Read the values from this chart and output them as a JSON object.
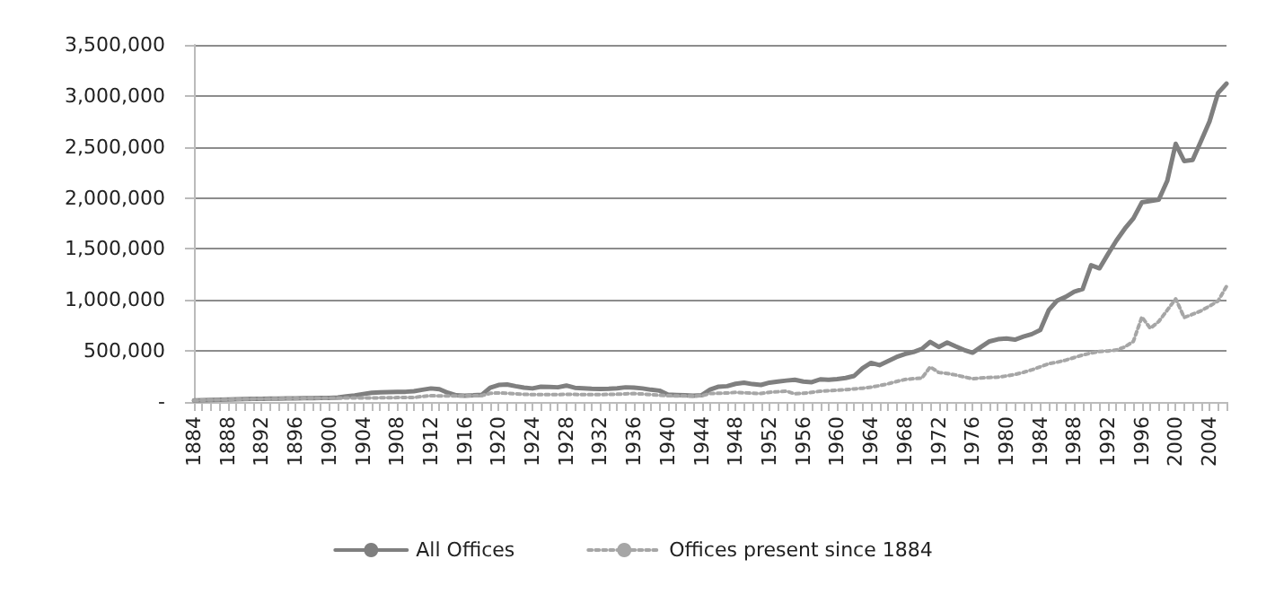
{
  "chart_data": {
    "type": "line",
    "categories": [
      "1884",
      null,
      null,
      null,
      "1888",
      null,
      null,
      null,
      "1892",
      null,
      null,
      null,
      "1896",
      null,
      null,
      null,
      "1900",
      null,
      null,
      null,
      "1904",
      null,
      null,
      null,
      "1908",
      null,
      null,
      null,
      "1912",
      null,
      null,
      null,
      "1916",
      null,
      null,
      null,
      "1920",
      null,
      null,
      null,
      "1924",
      null,
      null,
      null,
      "1928",
      null,
      null,
      null,
      "1932",
      null,
      null,
      null,
      "1936",
      null,
      null,
      null,
      "1940",
      null,
      null,
      null,
      "1944",
      null,
      null,
      null,
      "1948",
      null,
      null,
      null,
      "1952",
      null,
      null,
      null,
      "1956",
      null,
      null,
      null,
      "1960",
      null,
      null,
      null,
      "1964",
      null,
      null,
      null,
      "1968",
      null,
      null,
      null,
      "1972",
      null,
      null,
      null,
      "1976",
      null,
      null,
      null,
      "1980",
      null,
      null,
      null,
      "1984",
      null,
      null,
      null,
      "1988",
      null,
      null,
      null,
      "1992",
      null,
      null,
      null,
      "1996",
      null,
      null,
      null,
      "2000",
      null,
      null,
      null,
      "2004",
      null,
      null
    ],
    "series": [
      {
        "name": "All Offices",
        "color": "#7f7f7f",
        "line_style": "solid",
        "values": [
          15000,
          18000,
          20000,
          22000,
          25000,
          26000,
          28000,
          30000,
          30000,
          32000,
          33000,
          35000,
          35000,
          37000,
          38000,
          39000,
          40000,
          45000,
          55000,
          65000,
          78000,
          90000,
          95000,
          97000,
          98000,
          100000,
          105000,
          120000,
          133000,
          125000,
          90000,
          65000,
          62000,
          65000,
          70000,
          140000,
          167000,
          172000,
          155000,
          140000,
          133000,
          150000,
          148000,
          144000,
          161000,
          139000,
          135000,
          130000,
          128000,
          130000,
          135000,
          144000,
          140000,
          133000,
          120000,
          111000,
          72000,
          68000,
          65000,
          61000,
          67000,
          122000,
          150000,
          155000,
          178000,
          189000,
          175000,
          167000,
          190000,
          200000,
          210000,
          217000,
          200000,
          194000,
          222000,
          217000,
          225000,
          235000,
          255000,
          330000,
          383000,
          361000,
          400000,
          440000,
          470000,
          490000,
          520000,
          589000,
          539000,
          583000,
          545000,
          510000,
          483000,
          540000,
          594000,
          615000,
          622000,
          611000,
          640000,
          665000,
          706000,
          900000,
          994000,
          1030000,
          1080000,
          1106000,
          1340000,
          1310000,
          1450000,
          1583000,
          1700000,
          1800000,
          1956000,
          1970000,
          1983000,
          2167000,
          2530000,
          2361000,
          2372000,
          2560000,
          2750000,
          3028000,
          3120000
        ]
      },
      {
        "name": "Offices present since 1884",
        "color": "#a6a6a6",
        "line_style": "dotted",
        "values": [
          15000,
          18000,
          20000,
          22000,
          25000,
          26000,
          28000,
          30000,
          30000,
          32000,
          33000,
          35000,
          35000,
          36000,
          37000,
          38000,
          38000,
          38000,
          39000,
          39000,
          39000,
          40000,
          41000,
          42000,
          43000,
          44000,
          44000,
          55000,
          61000,
          60000,
          60000,
          60000,
          61000,
          62000,
          63000,
          85000,
          89000,
          85000,
          80000,
          75000,
          72000,
          72000,
          72000,
          73000,
          75000,
          74000,
          72000,
          72000,
          73000,
          74000,
          76000,
          80000,
          83000,
          78000,
          72000,
          66000,
          61000,
          60000,
          60000,
          60000,
          61000,
          83000,
          85000,
          88000,
          94000,
          90000,
          86000,
          83000,
          95000,
          100000,
          106000,
          80000,
          85000,
          95000,
          106000,
          110000,
          115000,
          120000,
          128000,
          135000,
          145000,
          160000,
          178000,
          200000,
          220000,
          228000,
          233000,
          344000,
          289000,
          280000,
          265000,
          245000,
          228000,
          235000,
          240000,
          244000,
          255000,
          270000,
          290000,
          315000,
          345000,
          375000,
          390000,
          410000,
          435000,
          460000,
          480000,
          495000,
          500000,
          510000,
          540000,
          594000,
          833000,
          722000,
          789000,
          900000,
          1011000,
          828000,
          860000,
          894000,
          940000,
          990000,
          1133000
        ]
      }
    ],
    "ylim": [
      0,
      3500000
    ],
    "yticks": [
      {
        "value": 0,
        "label": "-"
      },
      {
        "value": 500000,
        "label": "500,000"
      },
      {
        "value": 1000000,
        "label": "1,000,000"
      },
      {
        "value": 1500000,
        "label": "1,500,000"
      },
      {
        "value": 2000000,
        "label": "2,000,000"
      },
      {
        "value": 2500000,
        "label": "2,500,000"
      },
      {
        "value": 3000000,
        "label": "3,000,000"
      },
      {
        "value": 3500000,
        "label": "3,500,000"
      }
    ],
    "grid": "y",
    "legend": "bottom",
    "marker": "none"
  }
}
